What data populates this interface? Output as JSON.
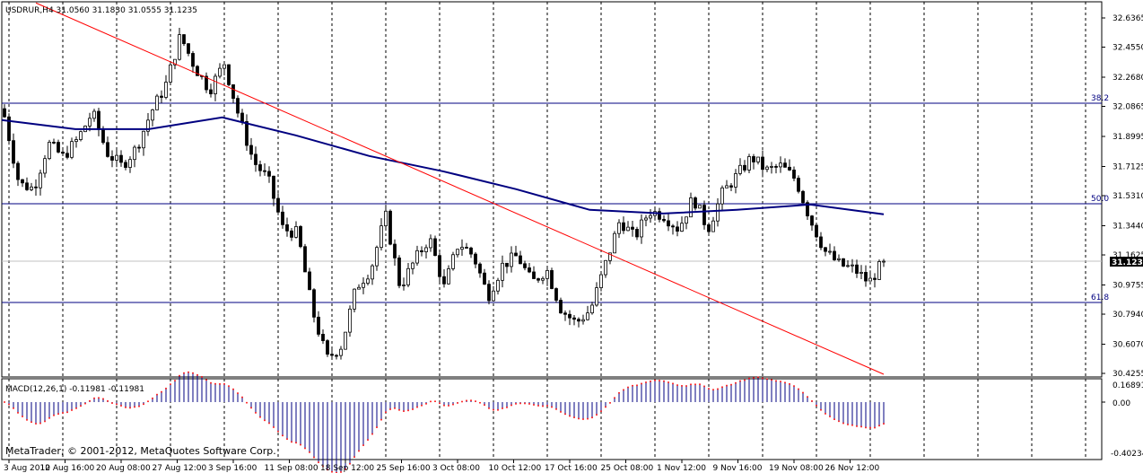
{
  "header": {
    "symbol_info": "USDRUR,H4  31.0560 31.1830 31.0555 31.1235"
  },
  "indicator": {
    "label": "MACD(12,26,1) -0.11981 -0.11981",
    "ticks": [
      "0.16891",
      "0.00",
      "-0.40234"
    ]
  },
  "copyright": "MetaTrader, © 2001-2012, MetaQuotes Software Corp.",
  "colors": {
    "up_candle": "#ffffff",
    "down_candle": "#000000",
    "moving_average": "#000080",
    "trendline": "#ff0000",
    "fib_lines": "#000080",
    "macd_hist": "#000080",
    "macd_signal": "#ff0000",
    "grid": "#000000"
  },
  "chart_data": {
    "type": "candlestick",
    "symbol": "USDRUR",
    "timeframe": "H4",
    "ylim": [
      30.4255,
      32.6365
    ],
    "price_ticks": [
      "32.6365",
      "32.4550",
      "32.2680",
      "32.0865",
      "31.8995",
      "31.7125",
      "31.5310",
      "31.3440",
      "31.1625",
      "30.9755",
      "30.7940",
      "30.6070",
      "30.4255"
    ],
    "current_price": "31.1235",
    "x_labels": [
      "3 Aug 2012",
      "10 Aug 16:00",
      "20 Aug 08:00",
      "27 Aug 12:00",
      "3 Sep 16:00",
      "11 Sep 08:00",
      "18 Sep 12:00",
      "25 Sep 16:00",
      "3 Oct 08:00",
      "10 Oct 12:00",
      "17 Oct 16:00",
      "25 Oct 08:00",
      "1 Nov 12:00",
      "9 Nov 16:00",
      "19 Nov 08:00",
      "26 Nov 12:00"
    ],
    "close_path": [
      32.022,
      31.604,
      31.576,
      31.855,
      31.771,
      31.883,
      32.05,
      31.799,
      31.715,
      31.827,
      32.05,
      32.218,
      32.525,
      32.329,
      32.19,
      32.357,
      32.022,
      31.743,
      31.632,
      31.324,
      31.297,
      30.822,
      30.515,
      30.599,
      30.962,
      31.073,
      31.408,
      30.962,
      31.129,
      31.269,
      30.962,
      31.241,
      31.157,
      30.906,
      31.101,
      31.157,
      30.99,
      31.073,
      30.822,
      30.738,
      30.822,
      31.101,
      31.38,
      31.269,
      31.436,
      31.408,
      31.324,
      31.52,
      31.324,
      31.548,
      31.659,
      31.771,
      31.687,
      31.715,
      31.632,
      31.38,
      31.185,
      31.101,
      31.073,
      30.99,
      31.123
    ],
    "moving_average_path": [
      32.001,
      31.945,
      31.945,
      32.018,
      31.906,
      31.778,
      31.683,
      31.571,
      31.443,
      31.42,
      31.443,
      31.476,
      31.415
    ],
    "fib_levels": [
      {
        "label": "38.2",
        "price": 32.106
      },
      {
        "label": "50.0",
        "price": 31.481
      },
      {
        "label": "61.8",
        "price": 30.867
      }
    ],
    "trendline": {
      "start_price": 32.73,
      "end_price": 30.42
    }
  }
}
